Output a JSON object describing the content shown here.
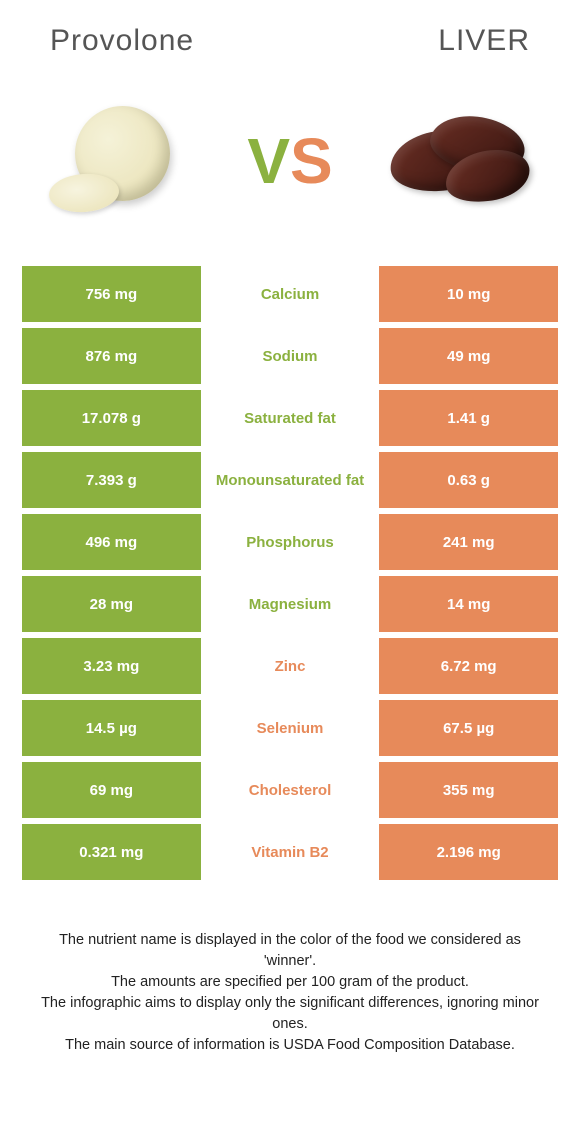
{
  "colors": {
    "left_bg": "#8bb13f",
    "right_bg": "#e78a5a",
    "left_text": "#8bb13f",
    "right_text": "#e78a5a",
    "cell_text": "#ffffff"
  },
  "header": {
    "left": "Provolone",
    "right": "LIVER"
  },
  "vs": {
    "v": "V",
    "s": "S"
  },
  "rows": [
    {
      "left": "756 mg",
      "name": "Calcium",
      "right": "10 mg",
      "winner": "left"
    },
    {
      "left": "876 mg",
      "name": "Sodium",
      "right": "49 mg",
      "winner": "left"
    },
    {
      "left": "17.078 g",
      "name": "Saturated fat",
      "right": "1.41 g",
      "winner": "left"
    },
    {
      "left": "7.393 g",
      "name": "Monounsaturated fat",
      "right": "0.63 g",
      "winner": "left"
    },
    {
      "left": "496 mg",
      "name": "Phosphorus",
      "right": "241 mg",
      "winner": "left"
    },
    {
      "left": "28 mg",
      "name": "Magnesium",
      "right": "14 mg",
      "winner": "left"
    },
    {
      "left": "3.23 mg",
      "name": "Zinc",
      "right": "6.72 mg",
      "winner": "right"
    },
    {
      "left": "14.5 µg",
      "name": "Selenium",
      "right": "67.5 µg",
      "winner": "right"
    },
    {
      "left": "69 mg",
      "name": "Cholesterol",
      "right": "355 mg",
      "winner": "right"
    },
    {
      "left": "0.321 mg",
      "name": "Vitamin B2",
      "right": "2.196 mg",
      "winner": "right"
    }
  ],
  "footer": {
    "line1": "The nutrient name is displayed in the color of the food we considered as 'winner'.",
    "line2": "The amounts are specified per 100 gram of the product.",
    "line3": "The infographic aims to display only the significant differences, ignoring minor ones.",
    "line4": "The main source of information is USDA Food Composition Database."
  }
}
